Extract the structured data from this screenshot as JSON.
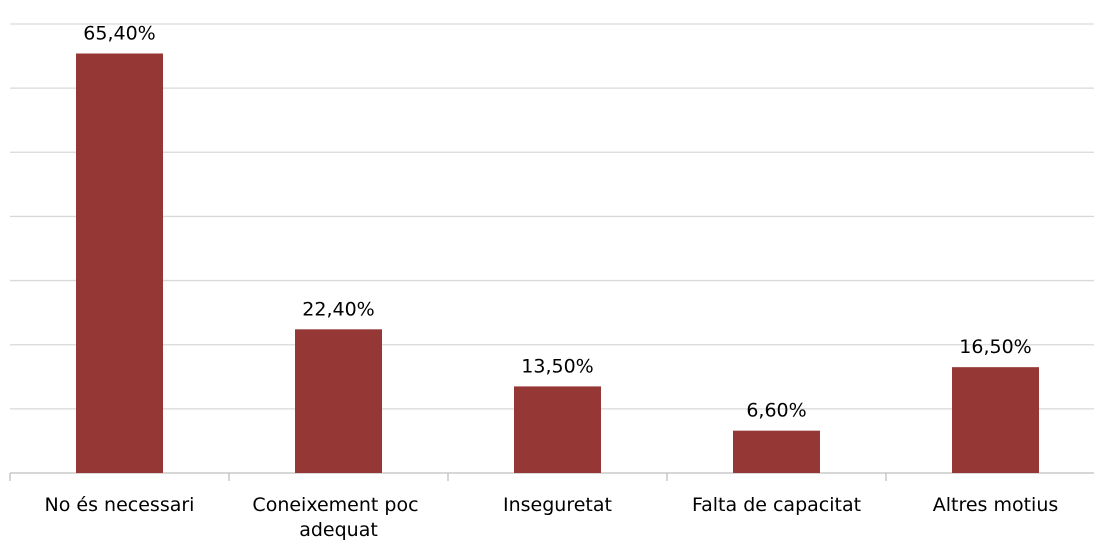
{
  "chart_data": {
    "type": "bar",
    "categories": [
      "No és necessari",
      "Coneixement poc adequat",
      "Inseguretat",
      "Falta de capacitat",
      "Altres motius"
    ],
    "values": [
      65.4,
      22.4,
      13.5,
      6.6,
      16.5
    ],
    "value_labels": [
      "65,40%",
      "22,40%",
      "13,50%",
      "6,60%",
      "16,50%"
    ],
    "color": "#953735",
    "ylim": [
      0,
      70
    ],
    "yticks": [
      0,
      10,
      20,
      30,
      40,
      50,
      60,
      70
    ],
    "grid": true
  }
}
